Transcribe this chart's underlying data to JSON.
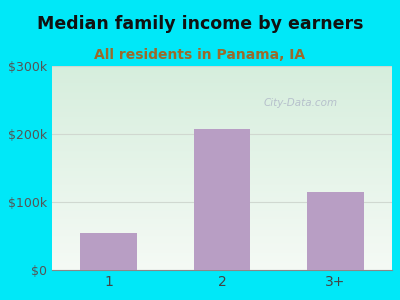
{
  "title": "Median family income by earners",
  "subtitle": "All residents in Panama, IA",
  "categories": [
    "1",
    "2",
    "3+"
  ],
  "values": [
    55000,
    208000,
    115000
  ],
  "bar_color": "#b89ec4",
  "title_fontsize": 12.5,
  "subtitle_fontsize": 10,
  "subtitle_color": "#9b6a2a",
  "title_color": "#111111",
  "background_outer": "#00e8f8",
  "background_inner_top": "#d6eedd",
  "background_inner_bottom": "#f5faf5",
  "ylim": [
    0,
    300000
  ],
  "yticks": [
    0,
    100000,
    200000,
    300000
  ],
  "ytick_labels": [
    "$0",
    "$100k",
    "$200k",
    "$300k"
  ],
  "watermark": "City-Data.com",
  "watermark_color": "#b0b8c8",
  "grid_color": "#d0d8d0"
}
